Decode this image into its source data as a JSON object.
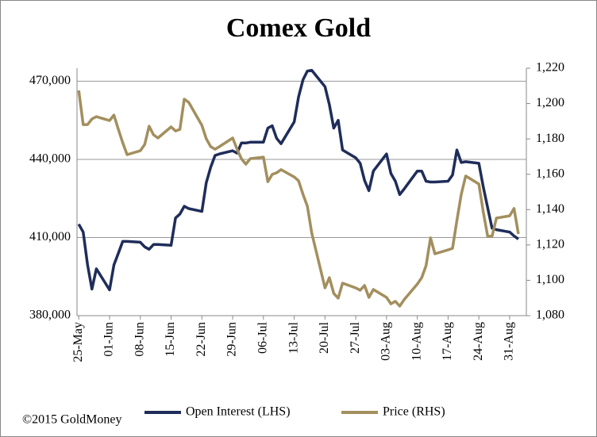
{
  "chart_data": {
    "type": "line",
    "title": "Comex Gold",
    "footer": "©2015 GoldMoney",
    "x": [
      0,
      1,
      2,
      3,
      4,
      7,
      8,
      9,
      10,
      11,
      14,
      15,
      16,
      17,
      18,
      21,
      22,
      23,
      24,
      25,
      28,
      29,
      30,
      31,
      32,
      35,
      36,
      37,
      38,
      39,
      42,
      43,
      44,
      45,
      46,
      49,
      50,
      51,
      52,
      53,
      56,
      57,
      58,
      59,
      60,
      63,
      64,
      65,
      66,
      67,
      70,
      71,
      72,
      73,
      74,
      77,
      78,
      79,
      80,
      81,
      84,
      85,
      86,
      87,
      88,
      91,
      92,
      93,
      94,
      95,
      98,
      99,
      100
    ],
    "xlim": [
      -0.4,
      101.8
    ],
    "xticks": [
      {
        "value": 0,
        "label": "25-May"
      },
      {
        "value": 7,
        "label": "01-Jun"
      },
      {
        "value": 14,
        "label": "08-Jun"
      },
      {
        "value": 21,
        "label": "15-Jun"
      },
      {
        "value": 28,
        "label": "22-Jun"
      },
      {
        "value": 35,
        "label": "29-Jun"
      },
      {
        "value": 42,
        "label": "06-Jul"
      },
      {
        "value": 49,
        "label": "13-Jul"
      },
      {
        "value": 56,
        "label": "20-Jul"
      },
      {
        "value": 63,
        "label": "27-Jul"
      },
      {
        "value": 70,
        "label": "03-Aug"
      },
      {
        "value": 77,
        "label": "10-Aug"
      },
      {
        "value": 84,
        "label": "17-Aug"
      },
      {
        "value": 91,
        "label": "24-Aug"
      },
      {
        "value": 98,
        "label": "31-Aug"
      }
    ],
    "ylim": [
      380000,
      475000
    ],
    "yticks": [
      {
        "value": 380000,
        "label": "380,000"
      },
      {
        "value": 410000,
        "label": "410,000"
      },
      {
        "value": 440000,
        "label": "440,000"
      },
      {
        "value": 470000,
        "label": "470,000"
      }
    ],
    "y2lim": [
      1080,
      1220
    ],
    "y2ticks": [
      {
        "value": 1080,
        "label": "1,080"
      },
      {
        "value": 1100,
        "label": "1,100"
      },
      {
        "value": 1120,
        "label": "1,120"
      },
      {
        "value": 1140,
        "label": "1,140"
      },
      {
        "value": 1160,
        "label": "1,160"
      },
      {
        "value": 1180,
        "label": "1,180"
      },
      {
        "value": 1200,
        "label": "1,200"
      },
      {
        "value": 1220,
        "label": "1,220"
      }
    ],
    "grid": true,
    "legend": "bottom",
    "series": [
      {
        "name": "Open Interest (LHS)",
        "color": "#1f2d5a",
        "axis": "y",
        "values": [
          415100,
          412100,
          399500,
          390200,
          398000,
          389900,
          399500,
          404000,
          408500,
          408500,
          408200,
          406400,
          405500,
          407300,
          407300,
          407000,
          417500,
          419000,
          422000,
          421100,
          420000,
          431000,
          437000,
          441500,
          442100,
          443300,
          442400,
          446300,
          446300,
          446600,
          446600,
          452000,
          452900,
          448100,
          446000,
          454400,
          464000,
          470600,
          473900,
          474200,
          467900,
          461000,
          452000,
          455000,
          443600,
          440600,
          438500,
          431900,
          428000,
          435500,
          442100,
          434600,
          431600,
          426500,
          428600,
          435500,
          435500,
          431600,
          431300,
          431300,
          431600,
          434000,
          443600,
          438800,
          439100,
          438500,
          429500,
          421400,
          413600,
          413000,
          412100,
          410600,
          409400
        ]
      },
      {
        "name": "Price (RHS)",
        "color": "#a38f5e",
        "axis": "y2",
        "values": [
          1207.4,
          1188.1,
          1188.1,
          1191.3,
          1192.6,
          1190.4,
          1193.5,
          1185.4,
          1177.8,
          1171.1,
          1173.3,
          1176.9,
          1187.2,
          1182.3,
          1180.5,
          1186.8,
          1184.5,
          1185.4,
          1202.5,
          1200.7,
          1187.7,
          1180.1,
          1175.6,
          1174.2,
          1175.6,
          1180.5,
          1174.2,
          1168.8,
          1165.7,
          1168.8,
          1169.7,
          1155.8,
          1159.9,
          1160.8,
          1162.6,
          1158.5,
          1156.3,
          1148.6,
          1141.9,
          1126.7,
          1095.7,
          1101.5,
          1092.6,
          1089.9,
          1098.4,
          1095.7,
          1094.4,
          1097.1,
          1090.3,
          1094.8,
          1090.3,
          1086.7,
          1088.1,
          1085.4,
          1089.0,
          1097.9,
          1101.5,
          1108.3,
          1124.0,
          1115.0,
          1117.2,
          1118.1,
          1133.8,
          1148.6,
          1159.0,
          1154.5,
          1138.8,
          1124.9,
          1124.9,
          1135.2,
          1136.5,
          1140.6,
          1126.2
        ]
      }
    ]
  }
}
